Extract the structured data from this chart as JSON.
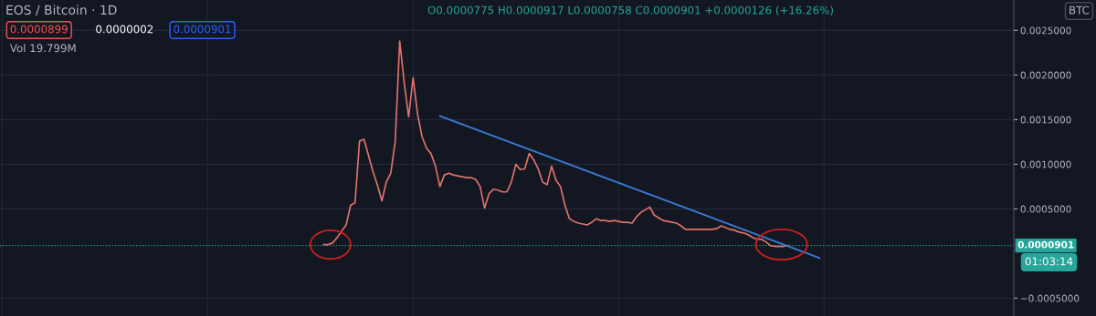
{
  "chart_data": {
    "type": "line",
    "title": "EOS / Bitcoin · 1D",
    "annotations": [
      "O0.0000775 H0.0000917 L0.0000758 C0.0000901 +0.0000126 (+16.26%)",
      "0.0000899",
      "0.0000002",
      "0.0000901",
      "Vol 19.799M",
      "BTC",
      "01:03:14"
    ],
    "categories": [
      null,
      null,
      null,
      null,
      null,
      null,
      null,
      null,
      null,
      null,
      null,
      null,
      null,
      null,
      null,
      null,
      null,
      null,
      null,
      null,
      null,
      null,
      null,
      null,
      null,
      null,
      null,
      null,
      null,
      null,
      null,
      null,
      null,
      null,
      null,
      null,
      null,
      null,
      null,
      null,
      null,
      null,
      null,
      null,
      null,
      null,
      null,
      null,
      null,
      null,
      null,
      null,
      null,
      null,
      null,
      null,
      null,
      null,
      null,
      null,
      null,
      null,
      null,
      null,
      null,
      null,
      null,
      null,
      null,
      null,
      null,
      null,
      null,
      null,
      null,
      null,
      null,
      null,
      null,
      null,
      null,
      null,
      null,
      null,
      null,
      null,
      null,
      null,
      null,
      null,
      null,
      null,
      null,
      null,
      null,
      null,
      null,
      null,
      null,
      null,
      null,
      null,
      null,
      null,
      null,
      null,
      null,
      null,
      null,
      null,
      null,
      null,
      null,
      null,
      null,
      null,
      null,
      null,
      null,
      null,
      null,
      null,
      null,
      null,
      null,
      null,
      null,
      null,
      null,
      null,
      null,
      null,
      null,
      null,
      null,
      null,
      null,
      null,
      null,
      null,
      null,
      null,
      null,
      null,
      null,
      null,
      null,
      null,
      null,
      null,
      null,
      null,
      null,
      null,
      null,
      null,
      null,
      null,
      null,
      null,
      null,
      null,
      null,
      null,
      null,
      null,
      null,
      null,
      null,
      null,
      null,
      null,
      null,
      null,
      null,
      null,
      null,
      null,
      null,
      null,
      null,
      null,
      null,
      null,
      null,
      null,
      null,
      null,
      null,
      null,
      null,
      null,
      null,
      null,
      null,
      null,
      null,
      null,
      null,
      null,
      null,
      null,
      null,
      null,
      null,
      null,
      null,
      null,
      null,
      null,
      null,
      null,
      null,
      null,
      null,
      null,
      null,
      null,
      null,
      null,
      null,
      null,
      null,
      null,
      null,
      null,
      null
    ],
    "series": [
      {
        "color": "#e0716b",
        "values": [
          null,
          null,
          null,
          null,
          null,
          null,
          null,
          null,
          null,
          null,
          null,
          null,
          null,
          null,
          null,
          null,
          null,
          null,
          null,
          null,
          null,
          null,
          null,
          null,
          null,
          null,
          null,
          null,
          null,
          null,
          null,
          null,
          null,
          null,
          null,
          null,
          null,
          null,
          null,
          null,
          null,
          null,
          null,
          null,
          null,
          null,
          null,
          null,
          null,
          null,
          null,
          null,
          null,
          null,
          null,
          null,
          null,
          null,
          null,
          null,
          null,
          null,
          null,
          null,
          null,
          null,
          null,
          null,
          null,
          null,
          null,
          null,
          0.0001,
          0.0001,
          0.00012,
          0.00018,
          0.00025,
          0.00032,
          0.00054,
          0.00057,
          0.00126,
          0.00128,
          0.0011,
          0.00092,
          0.00077,
          0.00059,
          0.0008,
          0.0009,
          0.00126,
          0.00238,
          0.00192,
          0.00153,
          0.00197,
          0.00156,
          0.00131,
          0.00118,
          0.00112,
          0.00098,
          0.00075,
          0.00088,
          0.0009,
          0.00088,
          0.00087,
          0.00086,
          0.00085,
          0.00085,
          0.00083,
          0.00075,
          0.00051,
          0.00067,
          0.00072,
          0.00071,
          0.00069,
          0.00069,
          0.0008,
          0.001,
          0.00094,
          0.00095,
          0.00112,
          0.00105,
          0.00095,
          0.0008,
          0.00077,
          0.00098,
          0.00082,
          0.00075,
          0.00054,
          0.00039,
          0.00036,
          0.00034,
          0.00033,
          0.00032,
          0.00035,
          0.00039,
          0.00037,
          0.00037,
          0.00036,
          0.00037,
          0.00036,
          0.00035,
          0.00035,
          0.00034,
          0.00041,
          0.00046,
          0.00049,
          0.00052,
          0.00043,
          0.0004,
          0.00037,
          0.00036,
          0.00035,
          0.00034,
          0.00031,
          0.00027,
          0.00027,
          0.00027,
          0.00027,
          0.00027,
          0.00027,
          0.00027,
          0.00028,
          0.00031,
          0.00029,
          0.00027,
          0.00026,
          0.00024,
          0.00023,
          0.00021,
          0.00018,
          0.00016,
          0.00016,
          0.00013,
          9e-05,
          8e-05,
          8e-05,
          8e-05,
          9e-05,
          null,
          null,
          null,
          null,
          null,
          null,
          null,
          null,
          null,
          null,
          null,
          null,
          null,
          null,
          null,
          null,
          null,
          null,
          null,
          null,
          null,
          null,
          null,
          null,
          null,
          null,
          null,
          null,
          null,
          null,
          null,
          null,
          null,
          null,
          null,
          null,
          null,
          null,
          null,
          null,
          null,
          null,
          null,
          null,
          null,
          null,
          null,
          null,
          null,
          null
        ]
      },
      {
        "color": "#3a7bd5",
        "values": [
          null,
          null,
          null,
          null,
          null,
          null,
          null,
          null,
          null,
          null,
          null,
          null,
          null,
          null,
          null,
          null,
          null,
          null,
          null,
          null,
          null,
          null,
          null,
          null,
          null,
          null,
          null,
          null,
          null,
          null,
          null,
          null,
          null,
          null,
          null,
          null,
          null,
          null,
          null,
          null,
          null,
          null,
          null,
          null,
          null,
          null,
          null,
          null,
          null,
          null,
          null,
          null,
          null,
          null,
          null,
          null,
          null,
          null,
          null,
          null,
          null,
          null,
          null,
          null,
          null,
          null,
          null,
          null,
          null,
          null,
          null,
          null,
          null,
          null,
          null,
          null,
          null,
          null,
          null,
          null,
          null,
          null,
          null,
          null,
          null,
          null,
          null,
          null,
          null,
          null,
          null,
          null,
          null,
          null,
          null,
          null,
          null,
          null,
          0.00154,
          null,
          null,
          null,
          null,
          null,
          null,
          null,
          null,
          null,
          null,
          null,
          null,
          null,
          null,
          null,
          null,
          null,
          null,
          null,
          null,
          null,
          null,
          null,
          null,
          null,
          null,
          null,
          null,
          null,
          null,
          null,
          null,
          null,
          null,
          null,
          null,
          null,
          null,
          null,
          null,
          null,
          null,
          null,
          null,
          null,
          null,
          null,
          null,
          null,
          null,
          null,
          null,
          null,
          null,
          null,
          null,
          null,
          null,
          null,
          null,
          null,
          null,
          null,
          null,
          null,
          null,
          null,
          null,
          null,
          null,
          null,
          null,
          null,
          null,
          null,
          null,
          null,
          null,
          null,
          null,
          null,
          null,
          null,
          null,
          -5e-05,
          null,
          null,
          null,
          null,
          null,
          null,
          null,
          null,
          null,
          null,
          null,
          null,
          null,
          null,
          null,
          null,
          null,
          null,
          null,
          null,
          null,
          null,
          null,
          null,
          null,
          null,
          null,
          null,
          null,
          null,
          null,
          null,
          null,
          null,
          null,
          null,
          null,
          null,
          null,
          null,
          null,
          null,
          null
        ]
      }
    ],
    "ylim": [
      -0.0007,
      0.00284
    ],
    "yticks": [
      {
        "value": -0.0005,
        "label": "−0.0005000"
      },
      {
        "value": 0.0005,
        "label": "0.0005000"
      },
      {
        "value": 0.001,
        "label": "0.0010000"
      },
      {
        "value": 0.0015,
        "label": "0.0015000"
      },
      {
        "value": 0.002,
        "label": "0.0020000"
      },
      {
        "value": 0.0025,
        "label": "0.0025000"
      }
    ],
    "tick_labels": "y",
    "ref_lines": [
      {
        "axis": "y",
        "value": 9.01e-05,
        "label": "0.0000901",
        "color": "#26a69a",
        "line_style": "dotted"
      }
    ],
    "grid": true,
    "legend": false,
    "marker": "none",
    "line_style": "solid"
  }
}
